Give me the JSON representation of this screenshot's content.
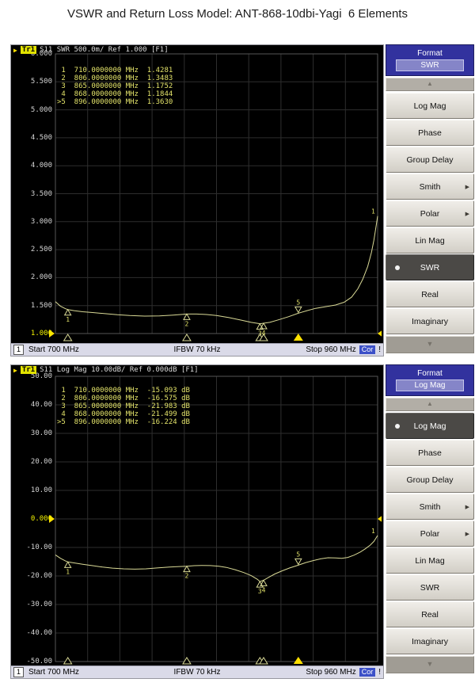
{
  "page_title": "VSWR and Return Loss Model: ANT-868-10dbi-Yagi  6 Elements",
  "status_bar": {
    "channel": "1",
    "start": "Start 700 MHz",
    "ifbw": "IFBW 70 kHz",
    "stop": "Stop 960 MHz",
    "cor_badge": "Cor",
    "alert": "!"
  },
  "colors": {
    "trace": "#d9d996",
    "marker_text": "#e3e36a",
    "ref_arrow": "#ffe000",
    "grid": "#2e2e2e",
    "grid_border": "#565656",
    "cor_badge_bg": "#3c50c8",
    "menu_header_bg": "#32329e",
    "selected_item_bg": "#4b4946"
  },
  "sidebar": {
    "title": "Format",
    "up_icon": "▲",
    "down_icon": "▼",
    "submenu_arrow_icon": "▶",
    "items": [
      {
        "label": "Log Mag",
        "submenu": false
      },
      {
        "label": "Phase",
        "submenu": false
      },
      {
        "label": "Group Delay",
        "submenu": false
      },
      {
        "label": "Smith",
        "submenu": true
      },
      {
        "label": "Polar",
        "submenu": true
      },
      {
        "label": "Lin Mag",
        "submenu": false
      },
      {
        "label": "SWR",
        "submenu": false
      },
      {
        "label": "Real",
        "submenu": false
      },
      {
        "label": "Imaginary",
        "submenu": false
      }
    ]
  },
  "chart_data": [
    {
      "type": "line",
      "title": "S11 SWR 500.0m/ Ref 1.000 [F1]",
      "trace_badge": "Tr1",
      "trace_arrow": "▶",
      "menu_selected": "SWR",
      "xlim": [
        700,
        960
      ],
      "ylim": [
        1.0,
        6.0
      ],
      "grid": true,
      "yticks": [
        "6.000",
        "5.500",
        "5.000",
        "4.500",
        "4.000",
        "3.500",
        "3.000",
        "2.500",
        "2.000",
        "1.500",
        "1.000"
      ],
      "ref_tick_index": 10,
      "ref_value": 1.0,
      "freq_unit": "MHz",
      "trace_end_label": "1",
      "markers": [
        {
          "n": "1",
          "freq_mhz": 710,
          "freq_label": "710.0000000",
          "value": 1.4281,
          "value_label": "1.4281",
          "active": false
        },
        {
          "n": "2",
          "freq_mhz": 806,
          "freq_label": "806.0000000",
          "value": 1.3483,
          "value_label": "1.3483",
          "active": false
        },
        {
          "n": "3",
          "freq_mhz": 865,
          "freq_label": "865.0000000",
          "value": 1.1752,
          "value_label": "1.1752",
          "active": false
        },
        {
          "n": "4",
          "freq_mhz": 868,
          "freq_label": "868.0000000",
          "value": 1.1844,
          "value_label": "1.1844",
          "active": false
        },
        {
          "n": "5",
          "freq_mhz": 896,
          "freq_label": "896.0000000",
          "value": 1.363,
          "value_label": "1.3630",
          "active": true
        }
      ],
      "trace": [
        [
          700,
          1.57
        ],
        [
          704,
          1.49
        ],
        [
          708,
          1.445
        ],
        [
          710,
          1.4281
        ],
        [
          715,
          1.41
        ],
        [
          722,
          1.39
        ],
        [
          730,
          1.375
        ],
        [
          740,
          1.355
        ],
        [
          750,
          1.335
        ],
        [
          760,
          1.322
        ],
        [
          772,
          1.312
        ],
        [
          784,
          1.315
        ],
        [
          795,
          1.33
        ],
        [
          806,
          1.3483
        ],
        [
          814,
          1.348
        ],
        [
          822,
          1.34
        ],
        [
          830,
          1.322
        ],
        [
          840,
          1.285
        ],
        [
          850,
          1.24
        ],
        [
          858,
          1.2
        ],
        [
          865,
          1.1752
        ],
        [
          868,
          1.1844
        ],
        [
          873,
          1.2
        ],
        [
          880,
          1.245
        ],
        [
          888,
          1.3
        ],
        [
          896,
          1.363
        ],
        [
          903,
          1.41
        ],
        [
          910,
          1.45
        ],
        [
          918,
          1.48
        ],
        [
          926,
          1.51
        ],
        [
          933,
          1.56
        ],
        [
          939,
          1.65
        ],
        [
          944,
          1.8
        ],
        [
          948,
          1.97
        ],
        [
          952,
          2.2
        ],
        [
          955,
          2.45
        ],
        [
          957,
          2.67
        ],
        [
          959,
          2.95
        ],
        [
          960,
          3.1
        ]
      ]
    },
    {
      "type": "line",
      "title": "S11 Log Mag 10.00dB/ Ref 0.000dB [F1]",
      "trace_badge": "Tr1",
      "trace_arrow": "▶",
      "menu_selected": "Log Mag",
      "xlim": [
        700,
        960
      ],
      "ylim": [
        -50,
        50
      ],
      "grid": true,
      "yticks": [
        "50.00",
        "40.00",
        "30.00",
        "20.00",
        "10.00",
        "0.000",
        "-10.00",
        "-20.00",
        "-30.00",
        "-40.00",
        "-50.00"
      ],
      "ref_tick_index": 5,
      "ref_value": 0,
      "freq_unit": "MHz",
      "trace_end_label": "1",
      "markers": [
        {
          "n": "1",
          "freq_mhz": 710,
          "freq_label": "710.0000000",
          "value": -15.093,
          "value_label": "-15.093 dB",
          "active": false
        },
        {
          "n": "2",
          "freq_mhz": 806,
          "freq_label": "806.0000000",
          "value": -16.575,
          "value_label": "-16.575 dB",
          "active": false
        },
        {
          "n": "3",
          "freq_mhz": 865,
          "freq_label": "865.0000000",
          "value": -21.983,
          "value_label": "-21.983 dB",
          "active": false
        },
        {
          "n": "4",
          "freq_mhz": 868,
          "freq_label": "868.0000000",
          "value": -21.499,
          "value_label": "-21.499 dB",
          "active": false
        },
        {
          "n": "5",
          "freq_mhz": 896,
          "freq_label": "896.0000000",
          "value": -16.224,
          "value_label": "-16.224 dB",
          "active": true
        }
      ],
      "trace": [
        [
          700,
          -12.6
        ],
        [
          704,
          -13.8
        ],
        [
          708,
          -14.7
        ],
        [
          710,
          -15.093
        ],
        [
          716,
          -15.5
        ],
        [
          722,
          -15.9
        ],
        [
          730,
          -16.4
        ],
        [
          738,
          -16.9
        ],
        [
          746,
          -17.25
        ],
        [
          755,
          -17.5
        ],
        [
          764,
          -17.6
        ],
        [
          773,
          -17.5
        ],
        [
          782,
          -17.2
        ],
        [
          792,
          -16.9
        ],
        [
          800,
          -16.7
        ],
        [
          806,
          -16.575
        ],
        [
          812,
          -16.4
        ],
        [
          818,
          -16.3
        ],
        [
          825,
          -16.35
        ],
        [
          832,
          -16.6
        ],
        [
          838,
          -17.0
        ],
        [
          845,
          -17.8
        ],
        [
          852,
          -18.8
        ],
        [
          858,
          -19.9
        ],
        [
          863,
          -21.2
        ],
        [
          865,
          -21.983
        ],
        [
          868,
          -21.499
        ],
        [
          872,
          -20.5
        ],
        [
          877,
          -19.3
        ],
        [
          883,
          -18.2
        ],
        [
          889,
          -17.2
        ],
        [
          896,
          -16.224
        ],
        [
          902,
          -15.3
        ],
        [
          908,
          -14.6
        ],
        [
          914,
          -14.0
        ],
        [
          920,
          -13.6
        ],
        [
          926,
          -13.7
        ],
        [
          931,
          -13.8
        ],
        [
          936,
          -13.5
        ],
        [
          941,
          -12.7
        ],
        [
          946,
          -11.6
        ],
        [
          950,
          -10.5
        ],
        [
          954,
          -9.2
        ],
        [
          957,
          -7.9
        ],
        [
          960,
          -5.8
        ]
      ]
    }
  ]
}
